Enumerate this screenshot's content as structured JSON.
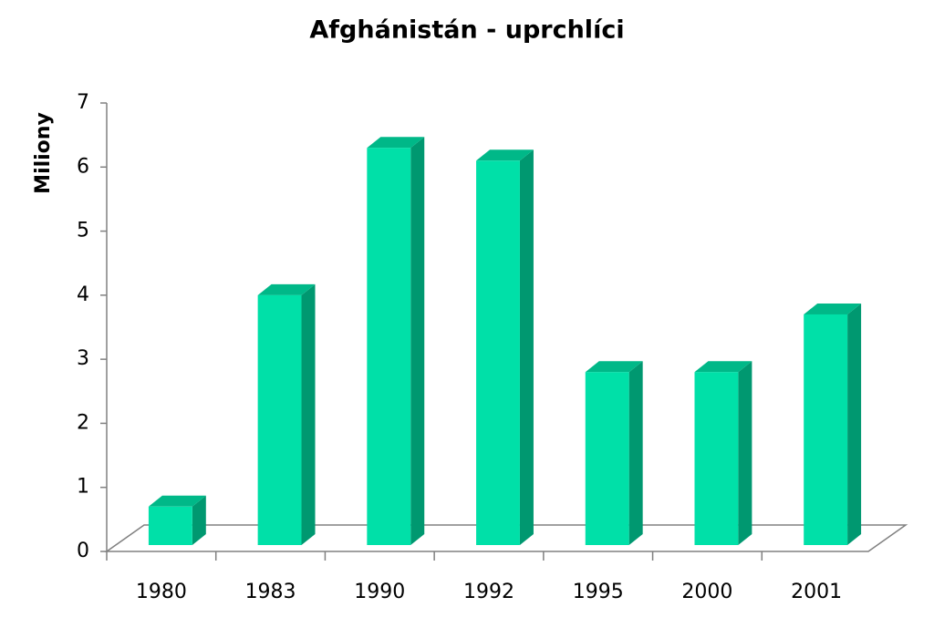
{
  "chart_data": {
    "type": "bar",
    "title": "Afghánistán - uprchlíci",
    "y_label": "Miliony",
    "categories": [
      "1980",
      "1983",
      "1990",
      "1992",
      "1995",
      "2000",
      "2001"
    ],
    "values": [
      0.7,
      4.0,
      6.3,
      6.1,
      2.8,
      2.8,
      3.7
    ],
    "color": "#00e0a8",
    "ylim": [
      0,
      7
    ],
    "yticks": [
      0,
      1,
      2,
      3,
      4,
      5,
      6,
      7
    ],
    "grid": false
  }
}
